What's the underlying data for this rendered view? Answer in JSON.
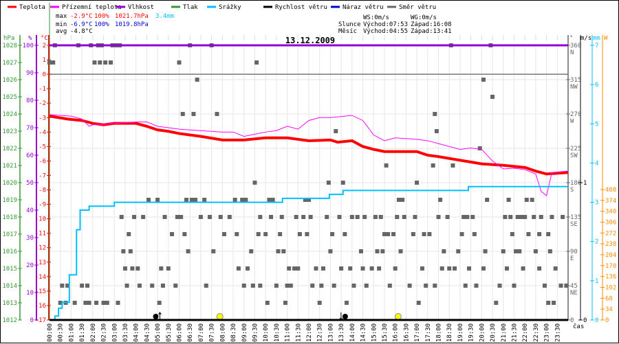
{
  "legend": [
    {
      "label": "Teplota",
      "color": "#ff0000"
    },
    {
      "label": "Přízemní teplota",
      "color": "#ff00ff"
    },
    {
      "label": "Vlhkost",
      "color": "#9400d3"
    },
    {
      "label": "Tlak",
      "color": "#339933"
    },
    {
      "label": "Srážky",
      "color": "#00bfff"
    },
    {
      "label": "Rychlost větru",
      "color": "#000000"
    },
    {
      "label": "Náraz větru",
      "color": "#0000cc"
    },
    {
      "label": "Směr větru",
      "color": "#666666"
    }
  ],
  "stats": {
    "max": {
      "label": "max",
      "temp": "-2.9°C",
      "hum": "100%",
      "press": "1021.7hPa",
      "rain": "3.4mm"
    },
    "min": {
      "label": "min",
      "temp": "-6.9°C",
      "hum": "100%",
      "press": "1019.8hPa"
    },
    "avg": {
      "label": "avg",
      "temp": "-4.8°C"
    }
  },
  "wind_info": {
    "ws": "WS:0m/s",
    "wg": "WG:0m/s"
  },
  "sun": {
    "label": "Slunce",
    "rise": "Východ:07:53",
    "set": "Západ:16:08"
  },
  "moon": {
    "label": "Měsíc",
    "rise": "Východ:04:55",
    "set": "Západ:13:41"
  },
  "chart_data": {
    "type": "line",
    "title": "13.12.2009",
    "xlabel": "čas",
    "x_ticks": [
      "00:00",
      "00:30",
      "01:00",
      "01:30",
      "02:00",
      "02:30",
      "03:00",
      "03:30",
      "04:00",
      "04:30",
      "05:00",
      "05:30",
      "06:00",
      "06:30",
      "07:00",
      "07:30",
      "08:00",
      "08:30",
      "09:00",
      "09:30",
      "10:00",
      "10:30",
      "11:00",
      "11:30",
      "12:00",
      "12:30",
      "13:00",
      "13:30",
      "14:00",
      "14:30",
      "15:00",
      "15:30",
      "16:00",
      "16:30",
      "17:00",
      "17:30",
      "18:00",
      "18:30",
      "19:00",
      "19:30",
      "20:00",
      "20:30",
      "21:00",
      "21:30",
      "22:00",
      "22:30",
      "23:00",
      "23:30"
    ],
    "axes": {
      "pressure": {
        "unit": "hPa",
        "range": [
          1012,
          1028
        ],
        "ticks": [
          "1028",
          "1027",
          "1026",
          "1025",
          "1024",
          "1023",
          "1022",
          "1021",
          "1020",
          "1019",
          "1018",
          "1017",
          "1016",
          "1015",
          "1014",
          "1013",
          "1012"
        ],
        "color": "#339933"
      },
      "humidity": {
        "unit": "%",
        "range": [
          0,
          100
        ],
        "ticks": [
          "100",
          "90",
          "80",
          "70",
          "60",
          "50",
          "40",
          "30",
          "20",
          "10",
          "0"
        ],
        "color": "#9400d3"
      },
      "temperature": {
        "unit": "°C",
        "range": [
          -17,
          2
        ],
        "ticks": [
          "2",
          "1",
          "0",
          "-1",
          "-2",
          "-3",
          "-4",
          "-5",
          "-6",
          "-7",
          "-8",
          "-9",
          "-10",
          "-11",
          "-12",
          "-13",
          "-14",
          "-15",
          "-16",
          "-17"
        ],
        "color": "#ff0000"
      },
      "direction": {
        "unit": "°",
        "range": [
          0,
          360
        ],
        "ticks": [
          {
            "v": "360",
            "d": "N"
          },
          {
            "v": "315",
            "d": "NW"
          },
          {
            "v": "270",
            "d": "W"
          },
          {
            "v": "225",
            "d": "SW"
          },
          {
            "v": "180",
            "d": "S"
          },
          {
            "v": "135",
            "d": "SE"
          },
          {
            "v": "90",
            "d": "E"
          },
          {
            "v": "45",
            "d": "NE"
          },
          {
            "v": "0",
            "d": ""
          }
        ],
        "color": "#666666"
      },
      "wind": {
        "unit": "m/s",
        "range": [
          0,
          1
        ],
        "ticks": [
          "1",
          "0"
        ],
        "color": "#000000"
      },
      "rain": {
        "unit": "mm",
        "range": [
          0,
          7
        ],
        "ticks": [
          "7",
          "6",
          "5",
          "4",
          "3",
          "2",
          "1",
          "0"
        ],
        "color": "#00bfff"
      },
      "solar": {
        "unit": "W",
        "range": [
          0,
          408
        ],
        "ticks": [
          "408",
          "374",
          "340",
          "306",
          "272",
          "238",
          "204",
          "170",
          "136",
          "102",
          "68",
          "34",
          "0"
        ],
        "color": "#ff8c00"
      }
    },
    "series": [
      {
        "name": "Teplota",
        "axis": "temperature",
        "points": [
          [
            "00:00",
            -2.9
          ],
          [
            "00:50",
            -3.1
          ],
          [
            "01:30",
            -3.2
          ],
          [
            "02:00",
            -3.4
          ],
          [
            "02:30",
            -3.5
          ],
          [
            "03:00",
            -3.4
          ],
          [
            "04:00",
            -3.4
          ],
          [
            "04:30",
            -3.6
          ],
          [
            "05:00",
            -3.85
          ],
          [
            "05:30",
            -3.95
          ],
          [
            "06:00",
            -4.1
          ],
          [
            "07:00",
            -4.3
          ],
          [
            "08:00",
            -4.55
          ],
          [
            "09:00",
            -4.55
          ],
          [
            "10:00",
            -4.4
          ],
          [
            "11:00",
            -4.4
          ],
          [
            "12:00",
            -4.6
          ],
          [
            "13:00",
            -4.55
          ],
          [
            "13:20",
            -4.7
          ],
          [
            "14:00",
            -4.6
          ],
          [
            "14:30",
            -5.0
          ],
          [
            "15:00",
            -5.2
          ],
          [
            "15:30",
            -5.35
          ],
          [
            "17:00",
            -5.35
          ],
          [
            "17:30",
            -5.6
          ],
          [
            "18:00",
            -5.7
          ],
          [
            "19:00",
            -5.95
          ],
          [
            "20:00",
            -6.2
          ],
          [
            "21:00",
            -6.3
          ],
          [
            "22:00",
            -6.45
          ],
          [
            "22:30",
            -6.7
          ],
          [
            "23:00",
            -6.9
          ],
          [
            "24:00",
            -6.8
          ]
        ]
      },
      {
        "name": "Přízemní teplota",
        "axis": "temperature",
        "points": [
          [
            "00:00",
            -2.8
          ],
          [
            "01:00",
            -2.9
          ],
          [
            "01:30",
            -3.1
          ],
          [
            "01:50",
            -3.6
          ],
          [
            "02:00",
            -3.5
          ],
          [
            "03:00",
            -3.4
          ],
          [
            "04:00",
            -3.3
          ],
          [
            "04:30",
            -3.3
          ],
          [
            "05:00",
            -3.6
          ],
          [
            "06:00",
            -3.8
          ],
          [
            "07:00",
            -3.9
          ],
          [
            "08:00",
            -4.0
          ],
          [
            "08:30",
            -4.0
          ],
          [
            "09:00",
            -4.3
          ],
          [
            "10:00",
            -4.0
          ],
          [
            "10:30",
            -3.9
          ],
          [
            "11:00",
            -3.6
          ],
          [
            "11:30",
            -3.8
          ],
          [
            "12:00",
            -3.2
          ],
          [
            "12:30",
            -3.0
          ],
          [
            "13:00",
            -3.0
          ],
          [
            "14:00",
            -2.85
          ],
          [
            "14:30",
            -3.2
          ],
          [
            "15:00",
            -4.2
          ],
          [
            "15:30",
            -4.6
          ],
          [
            "16:00",
            -4.4
          ],
          [
            "17:00",
            -4.5
          ],
          [
            "17:30",
            -4.6
          ],
          [
            "18:00",
            -4.8
          ],
          [
            "19:00",
            -5.2
          ],
          [
            "19:30",
            -5.1
          ],
          [
            "20:00",
            -5.2
          ],
          [
            "20:30",
            -6.0
          ],
          [
            "21:00",
            -6.55
          ],
          [
            "21:30",
            -6.5
          ],
          [
            "22:00",
            -6.6
          ],
          [
            "22:30",
            -6.9
          ],
          [
            "22:45",
            -8.1
          ],
          [
            "23:00",
            -8.4
          ],
          [
            "23:15",
            -6.8
          ],
          [
            "24:00",
            -6.7
          ]
        ]
      },
      {
        "name": "Vlhkost",
        "axis": "humidity",
        "points": [
          [
            "00:00",
            100
          ],
          [
            "24:00",
            100
          ]
        ]
      },
      {
        "name": "Srážky",
        "axis": "rain",
        "step": true,
        "points": [
          [
            "00:00",
            0
          ],
          [
            "00:15",
            0.1
          ],
          [
            "00:25",
            0.3
          ],
          [
            "00:35",
            0.45
          ],
          [
            "00:55",
            1.15
          ],
          [
            "01:15",
            2.3
          ],
          [
            "01:25",
            2.8
          ],
          [
            "01:50",
            2.9
          ],
          [
            "03:00",
            3.0
          ],
          [
            "10:47",
            3.1
          ],
          [
            "12:57",
            3.2
          ],
          [
            "13:35",
            3.3
          ],
          [
            "19:23",
            3.4
          ],
          [
            "24:00",
            3.4
          ]
        ]
      },
      {
        "name": "Rychlost větru",
        "axis": "wind",
        "points": [
          [
            "00:00",
            0
          ],
          [
            "24:00",
            0
          ]
        ]
      }
    ],
    "wind_direction": [
      [
        360,
        [
          "00:15",
          "01:20",
          "01:55",
          "02:15",
          "02:25",
          "02:55",
          "03:05",
          "03:15",
          "06:30",
          "07:30",
          "18:35",
          "20:25"
        ]
      ],
      [
        337.5,
        [
          "00:00",
          "00:10",
          "02:05",
          "02:20",
          "02:35",
          "02:50",
          "06:00",
          "09:35"
        ]
      ],
      [
        315,
        [
          "06:50",
          "20:05"
        ]
      ],
      [
        292.5,
        [
          "20:30"
        ]
      ],
      [
        270,
        [
          "06:10",
          "06:40",
          "07:45",
          "17:50"
        ]
      ],
      [
        247.5,
        [
          "13:15",
          "17:55"
        ]
      ],
      [
        225,
        [
          "19:55"
        ]
      ],
      [
        202.5,
        [
          "15:35",
          "17:45",
          "18:40"
        ]
      ],
      [
        180,
        [
          "09:30",
          "12:55",
          "13:35",
          "17:00"
        ]
      ],
      [
        157.5,
        [
          "04:35",
          "05:00",
          "06:20",
          "06:35",
          "06:45",
          "07:10",
          "08:35",
          "08:55",
          "09:05",
          "10:10",
          "10:20",
          "11:50",
          "12:00",
          "16:10",
          "16:20",
          "18:05",
          "20:15",
          "21:15",
          "22:05",
          "22:20"
        ]
      ],
      [
        135,
        [
          "03:20",
          "03:55",
          "04:20",
          "05:20",
          "05:55",
          "06:05",
          "07:00",
          "07:25",
          "07:55",
          "08:20",
          "09:45",
          "10:15",
          "10:45",
          "11:25",
          "11:45",
          "12:05",
          "12:50",
          "13:25",
          "14:00",
          "14:15",
          "14:35",
          "15:05",
          "15:20",
          "16:05",
          "16:25",
          "16:55",
          "18:00",
          "18:25",
          "19:10",
          "19:20",
          "19:35",
          "21:05",
          "21:20",
          "21:40",
          "21:50",
          "22:00",
          "22:25",
          "22:45",
          "23:15",
          "23:45"
        ]
      ],
      [
        112.5,
        [
          "03:40",
          "05:40",
          "06:15",
          "08:05",
          "08:40",
          "09:40",
          "10:00",
          "10:40",
          "11:35",
          "11:55",
          "13:05",
          "13:40",
          "15:30",
          "15:40",
          "15:55",
          "16:50",
          "17:20",
          "17:35",
          "19:05",
          "19:40",
          "21:25",
          "22:10",
          "22:40",
          "23:05"
        ]
      ],
      [
        90,
        [
          "03:25",
          "03:45",
          "06:25",
          "07:35",
          "09:20",
          "10:35",
          "10:50",
          "13:00",
          "14:25",
          "15:10",
          "15:25",
          "16:15",
          "18:15",
          "18:55",
          "20:10",
          "21:00",
          "21:35",
          "21:45",
          "22:30",
          "23:10"
        ]
      ],
      [
        67.5,
        [
          "03:30",
          "03:50",
          "04:05",
          "05:10",
          "05:30",
          "08:45",
          "09:10",
          "11:05",
          "11:20",
          "11:30",
          "12:20",
          "12:40",
          "13:30",
          "13:55",
          "14:30",
          "14:55",
          "15:15",
          "16:00",
          "17:15",
          "18:10",
          "18:30",
          "18:45",
          "19:25",
          "20:05",
          "21:10",
          "21:55",
          "22:40",
          "23:25"
        ]
      ],
      [
        45,
        [
          "00:35",
          "00:50",
          "01:30",
          "01:45",
          "03:35",
          "04:10",
          "04:45",
          "05:15",
          "05:50",
          "07:15",
          "09:00",
          "09:25",
          "09:45",
          "10:30",
          "11:00",
          "11:10",
          "12:10",
          "12:35",
          "13:10",
          "14:05",
          "14:40",
          "15:45",
          "16:40",
          "17:25",
          "17:50",
          "19:15",
          "19:45",
          "20:50",
          "21:30",
          "22:55",
          "23:40",
          "23:55"
        ]
      ],
      [
        22.5,
        [
          "00:30",
          "00:45",
          "01:10",
          "01:40",
          "01:50",
          "02:10",
          "02:30",
          "02:40",
          "03:10",
          "05:05",
          "10:05",
          "10:55",
          "12:30",
          "13:45",
          "17:05",
          "20:40",
          "23:05",
          "23:20"
        ]
      ]
    ],
    "events": [
      {
        "type": "moonrise",
        "time": "04:55"
      },
      {
        "type": "sunrise",
        "time": "07:53"
      },
      {
        "type": "moonset",
        "time": "13:41"
      },
      {
        "type": "sunset",
        "time": "16:08"
      }
    ],
    "freeze_line": 0,
    "grid": true
  }
}
